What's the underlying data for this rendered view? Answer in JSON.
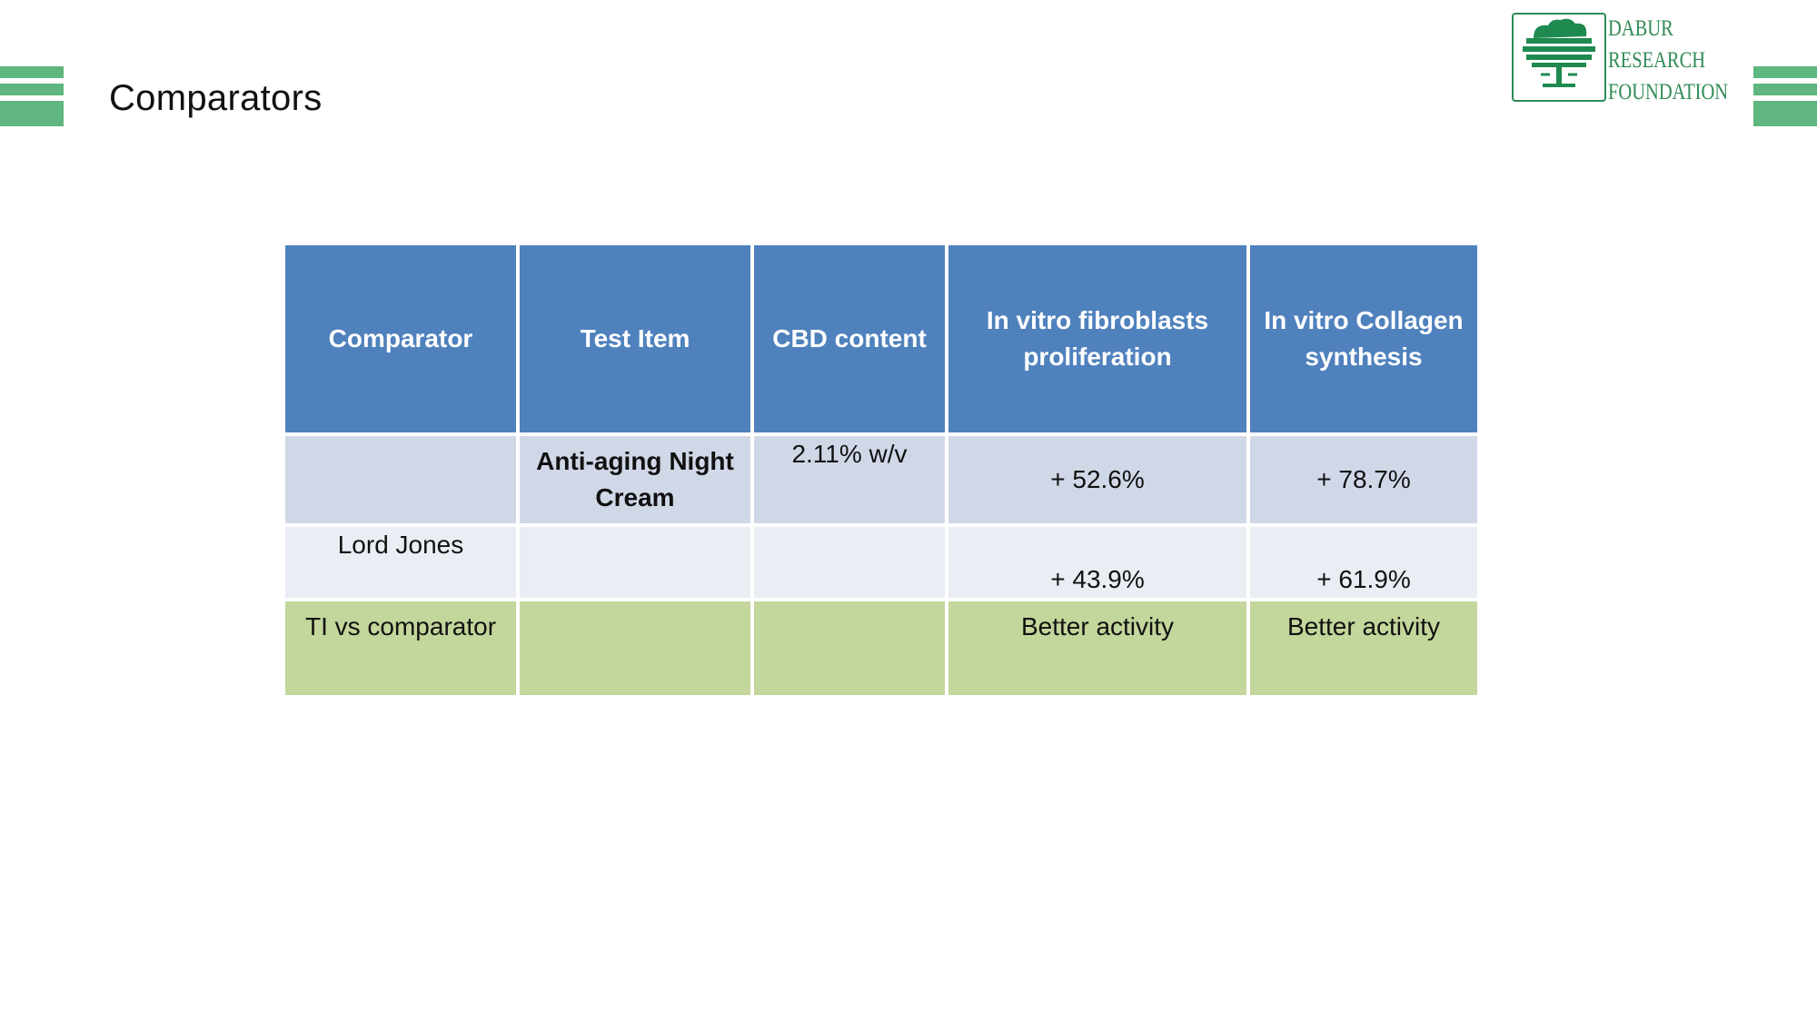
{
  "slide": {
    "title": "Comparators"
  },
  "logo": {
    "line1": "DABUR",
    "line2": "RESEARCH",
    "line3": "FOUNDATION",
    "icon": "tree-logo-icon"
  },
  "colors": {
    "accent_green": "#5fb67f",
    "header_blue": "#4f81bd",
    "row_blue_dark": "#d0d8e8",
    "row_blue_light": "#e9edf4",
    "row_green": "#c3d69b",
    "logo_green": "#2f8a55"
  },
  "table": {
    "headers": [
      "Comparator",
      "Test Item",
      "CBD content",
      "In vitro fibroblasts proliferation",
      "In vitro Collagen synthesis"
    ],
    "rows": [
      [
        "",
        "Anti-aging Night Cream",
        "2.11% w/v",
        "+ 52.6%",
        "+ 78.7%"
      ],
      [
        "Lord Jones",
        "",
        "",
        "+ 43.9%",
        "+ 61.9%"
      ],
      [
        "TI vs comparator",
        "",
        "",
        "Better activity",
        "Better activity"
      ]
    ]
  }
}
